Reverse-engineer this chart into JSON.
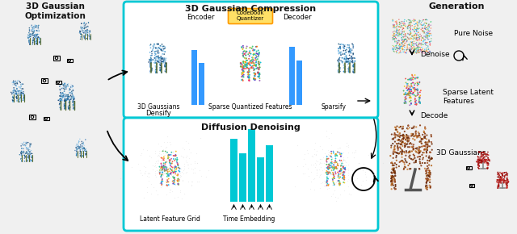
{
  "bg_color": "#f0f0f0",
  "box_stroke": "#00c8d4",
  "box_fill": "#ffffff",
  "bar_color_top": "#3399ff",
  "bar_color_bottom": "#00c8d4",
  "codebook_fill": "#ffe066",
  "codebook_stroke": "#ff9900",
  "text_color": "#111111",
  "title_left": "3D Gaussian\nOptimization",
  "title_center_top": "3D Gaussian Compression",
  "title_center_bottom": "Diffusion Denoising",
  "title_right": "Generation",
  "lbl_encoder": "Encoder",
  "lbl_codebook": "Codebook\nQuantizer",
  "lbl_decoder": "Decoder",
  "lbl_3d_gaussians": "3D Gaussians",
  "lbl_sparse_feat": "Sparse Quantized Features",
  "lbl_sparsify": "Sparsify",
  "lbl_densify": "Densify",
  "lbl_latent_grid": "Latent Feature Grid",
  "lbl_time_emb": "Time Embedding",
  "lbl_pure_noise": "Pure Noise",
  "lbl_denoise": "Denoise",
  "lbl_sparse_latent": "Sparse Latent\nFeatures",
  "lbl_decode": "Decode",
  "lbl_3d_gaussians_r": "3D Gaussians"
}
